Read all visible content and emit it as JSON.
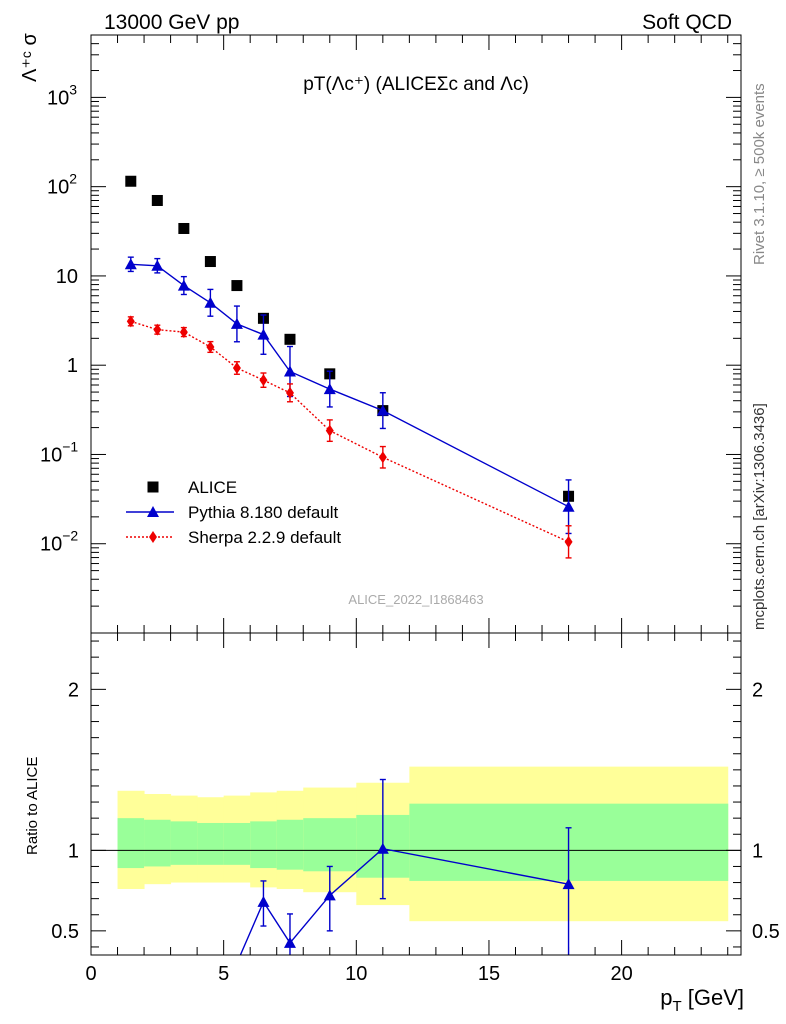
{
  "header": {
    "left": "13000 GeV pp",
    "right": "Soft QCD"
  },
  "side_text": {
    "rivet": "Rivet 3.1.10, ≥ 500k events",
    "mcplots": "mcplots.cern.ch [arXiv:1306.3436]"
  },
  "chart_data": [
    {
      "type": "scatter",
      "panel": "main",
      "title": "pT(Λc⁺) (ALICEΣc and Λc)",
      "ylabel": "Λ⁺ᶜ σ",
      "yscale": "log",
      "xlim": [
        0,
        24.5
      ],
      "ylim": [
        0.001,
        5000
      ],
      "watermark": "ALICE_2022_I1868463",
      "legend_position": "bottom-left",
      "series": [
        {
          "name": "ALICE",
          "marker": "square",
          "color": "#000000",
          "x": [
            1.5,
            2.5,
            3.5,
            4.5,
            5.5,
            6.5,
            7.5,
            9,
            11,
            18
          ],
          "y": [
            115,
            70,
            34,
            14.5,
            7.8,
            3.35,
            1.95,
            0.8,
            0.31,
            0.034
          ]
        },
        {
          "name": "Pythia 8.180 default",
          "marker": "triangle",
          "line": "solid",
          "color": "#0000cc",
          "x": [
            1.5,
            2.5,
            3.5,
            4.5,
            5.5,
            6.5,
            7.5,
            9,
            11,
            18
          ],
          "y": [
            13.5,
            13,
            7.8,
            5,
            2.9,
            2.2,
            0.85,
            0.54,
            0.31,
            0.026
          ],
          "err": [
            0.08,
            0.08,
            0.1,
            0.15,
            0.2,
            0.22,
            0.28,
            0.2,
            0.2,
            0.3
          ]
        },
        {
          "name": "Sherpa 2.2.9 default",
          "marker": "diamond",
          "line": "dotted",
          "color": "#ee0000",
          "x": [
            1.5,
            2.5,
            3.5,
            4.5,
            5.5,
            6.5,
            7.5,
            9,
            11,
            18
          ],
          "y": [
            3.1,
            2.5,
            2.35,
            1.6,
            0.93,
            0.68,
            0.49,
            0.185,
            0.093,
            0.0105
          ],
          "err": [
            0.05,
            0.05,
            0.05,
            0.06,
            0.07,
            0.08,
            0.1,
            0.12,
            0.12,
            0.18
          ]
        }
      ]
    },
    {
      "type": "line",
      "panel": "ratio",
      "ylabel": "Ratio to ALICE",
      "xlabel": "p_T [GeV]",
      "xlim": [
        0,
        24.5
      ],
      "ylim": [
        0.35,
        2.35
      ],
      "bands": {
        "edges": [
          1,
          2,
          3,
          4,
          5,
          6,
          7,
          8,
          10,
          12,
          24
        ],
        "yellow_low": [
          0.76,
          0.79,
          0.8,
          0.8,
          0.8,
          0.77,
          0.76,
          0.74,
          0.66,
          0.56
        ],
        "yellow_high": [
          1.37,
          1.35,
          1.34,
          1.33,
          1.34,
          1.36,
          1.37,
          1.39,
          1.42,
          1.52
        ],
        "green_low": [
          0.89,
          0.9,
          0.91,
          0.91,
          0.91,
          0.89,
          0.88,
          0.87,
          0.83,
          0.81
        ],
        "green_high": [
          1.2,
          1.19,
          1.18,
          1.17,
          1.17,
          1.18,
          1.19,
          1.2,
          1.22,
          1.29
        ]
      },
      "series": [
        {
          "name": "Pythia 8.180 default",
          "color": "#0000cc",
          "x": [
            5.5,
            6.5,
            7.5,
            9,
            11,
            18
          ],
          "y": [
            0.3,
            0.68,
            0.425,
            0.72,
            1.01,
            0.79
          ],
          "err_low": [
            0,
            0.15,
            0.2,
            0.22,
            0.31,
            0.45
          ],
          "err_high": [
            0,
            0.13,
            0.18,
            0.18,
            0.43,
            0.35
          ]
        }
      ]
    }
  ]
}
